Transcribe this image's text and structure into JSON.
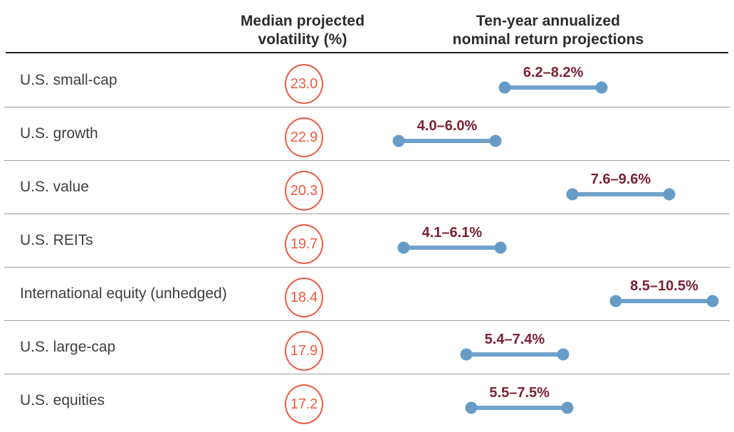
{
  "header": {
    "volatility_col": {
      "line1": "Median projected",
      "line2": "volatility (%)"
    },
    "returns_col": {
      "line1": "Ten-year annualized",
      "line2": "nominal return projections"
    }
  },
  "chart_data": {
    "type": "dumbbell",
    "title": "",
    "xlabel": "",
    "ylabel": "",
    "xlim": [
      3.7,
      10.8
    ],
    "grid": false,
    "legend": "none",
    "categories": [
      "U.S. small-cap",
      "U.S. growth",
      "U.S. value",
      "U.S. REITs",
      "International equity (unhedged)",
      "U.S. large-cap",
      "U.S. equities"
    ],
    "series": [
      {
        "name": "Median projected volatility (%)",
        "values": [
          23.0,
          22.9,
          20.3,
          19.7,
          18.4,
          17.9,
          17.2
        ]
      },
      {
        "name": "Ten-year annualized nominal return projection low (%)",
        "values": [
          6.2,
          4.0,
          7.6,
          4.1,
          8.5,
          5.4,
          5.5
        ]
      },
      {
        "name": "Ten-year annualized nominal return projection high (%)",
        "values": [
          8.2,
          6.0,
          9.6,
          6.1,
          10.5,
          7.4,
          7.5
        ]
      }
    ],
    "rows": [
      {
        "label": "U.S. small-cap",
        "volatility": "23.0",
        "return_low": 6.2,
        "return_high": 8.2,
        "range_label": "6.2–8.2%"
      },
      {
        "label": "U.S. growth",
        "volatility": "22.9",
        "return_low": 4.0,
        "return_high": 6.0,
        "range_label": "4.0–6.0%"
      },
      {
        "label": "U.S. value",
        "volatility": "20.3",
        "return_low": 7.6,
        "return_high": 9.6,
        "range_label": "7.6–9.6%"
      },
      {
        "label": "U.S. REITs",
        "volatility": "19.7",
        "return_low": 4.1,
        "return_high": 6.1,
        "range_label": "4.1–6.1%"
      },
      {
        "label": "International equity (unhedged)",
        "volatility": "18.4",
        "return_low": 8.5,
        "return_high": 10.5,
        "range_label": "8.5–10.5%"
      },
      {
        "label": "U.S. large-cap",
        "volatility": "17.9",
        "return_low": 5.4,
        "return_high": 7.4,
        "range_label": "5.4–7.4%"
      },
      {
        "label": "U.S. equities",
        "volatility": "17.2",
        "return_low": 5.5,
        "return_high": 7.5,
        "range_label": "5.5–7.5%"
      }
    ],
    "colors": {
      "accent_orange": "#F25740",
      "range_blue": "#6FA3CD",
      "range_blue_dot": "#679CC6",
      "range_maroon": "#7E2033",
      "text_dark": "#2B2B2B",
      "row_label": "#3E3E3E",
      "separator": "#9B9B9B",
      "header_rule": "#1F1F1F",
      "background": "#FFFFFF"
    }
  }
}
